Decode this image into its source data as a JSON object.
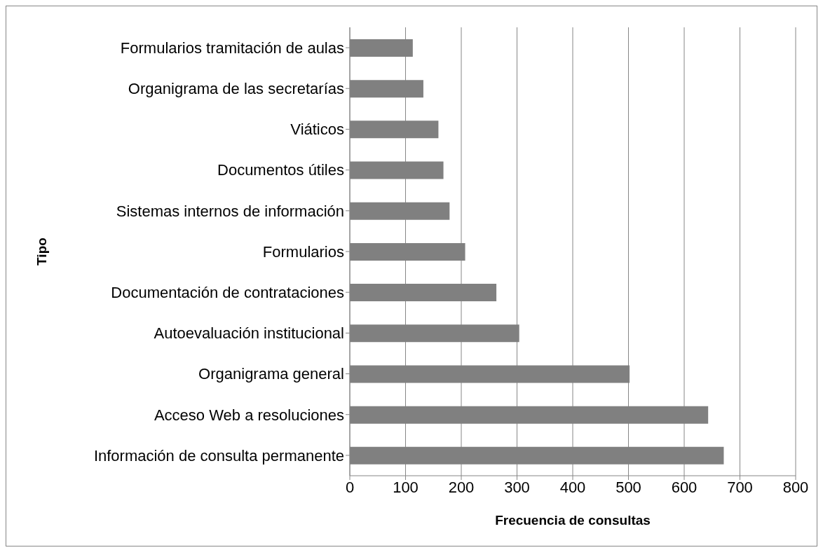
{
  "chart_data": {
    "type": "bar",
    "orientation": "horizontal",
    "xlabel": "Frecuencia de consultas",
    "ylabel": "Tipo",
    "categories": [
      "Formularios tramitación de aulas",
      "Organigrama de las secretarías",
      "Viáticos",
      "Documentos útiles",
      "Sistemas internos de información",
      "Formularios",
      "Documentación de contrataciones",
      "Autoevaluación institucional",
      "Organigrama general",
      "Acceso Web a resoluciones",
      "Información de consulta permanente"
    ],
    "values": [
      113,
      132,
      159,
      168,
      179,
      207,
      263,
      304,
      502,
      643,
      671
    ],
    "color": "#808080",
    "xlim": [
      0,
      800
    ],
    "xticks": [
      0,
      100,
      200,
      300,
      400,
      500,
      600,
      700,
      800
    ],
    "grid": "x",
    "legend": false
  }
}
